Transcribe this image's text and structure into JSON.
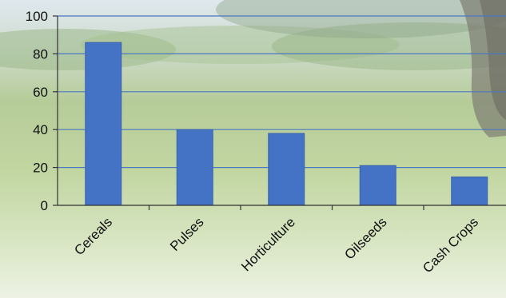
{
  "chart_data": {
    "type": "bar",
    "categories": [
      "Cereals",
      "Pulses",
      "Horticulture",
      "Oilseeds",
      "Cash Crops"
    ],
    "values": [
      86,
      40,
      38,
      21,
      15
    ],
    "title": "",
    "xlabel": "",
    "ylabel": "",
    "ylim": [
      0,
      100
    ],
    "yticks": [
      0,
      20,
      40,
      60,
      80,
      100
    ],
    "grid": true,
    "bar_color": "#4472c4",
    "gridline_color": "#4a78c0"
  }
}
